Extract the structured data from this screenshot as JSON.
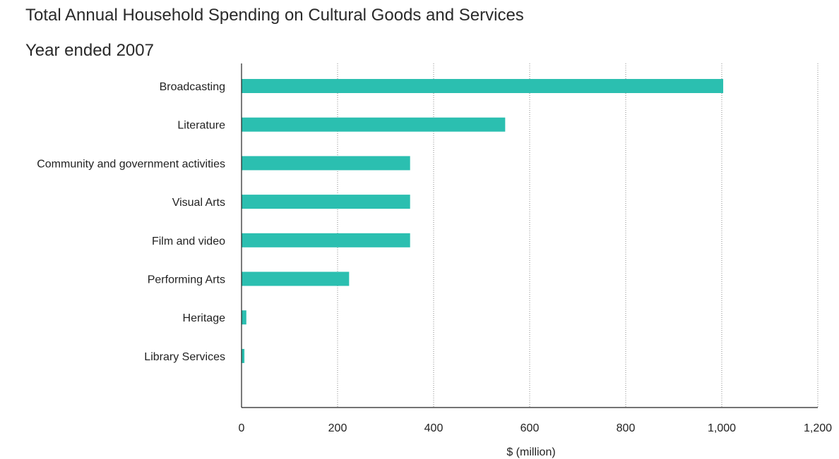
{
  "chart_data": {
    "type": "bar",
    "orientation": "horizontal",
    "title": "Total Annual Household Spending on Cultural Goods and Services",
    "subtitle": "Year ended 2007",
    "categories": [
      "Broadcasting",
      "Literature",
      "Community and government activities",
      "Visual Arts",
      "Film and video",
      "Performing Arts",
      "Heritage",
      "Library Services"
    ],
    "values": [
      1003,
      549,
      351,
      351,
      351,
      224,
      10,
      6
    ],
    "xlabel": "$ (million)",
    "ylabel": "",
    "xlim": [
      0,
      1200
    ],
    "xticks": [
      0,
      200,
      400,
      600,
      800,
      1000,
      1200
    ],
    "xtick_labels": [
      "0",
      "200",
      "400",
      "600",
      "800",
      "1,000",
      "1,200"
    ],
    "grid": "vertical dotted",
    "legend": "none",
    "bar_color": "#2bbfb0"
  }
}
